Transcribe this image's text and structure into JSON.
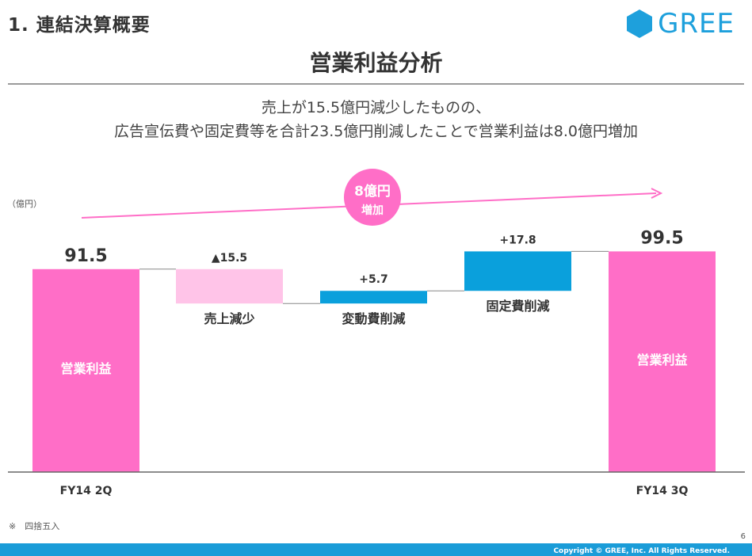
{
  "header": {
    "section_title": "1. 連結決算概要",
    "logo_text": "GREE"
  },
  "main_title": "営業利益分析",
  "subtitle": {
    "line1": "売上が15.5億円減少したものの、",
    "line2": "広告宣伝費や固定費等を合計23.5億円削減したことで営業利益は8.0億円増加"
  },
  "unit_label": "（億円）",
  "badge": {
    "line1": "8億円",
    "line2": "増加"
  },
  "chart_data": {
    "type": "bar",
    "subtype": "waterfall",
    "unit": "億円",
    "steps": [
      {
        "kind": "total",
        "category": "FY14 2Q",
        "inner_label": "営業利益",
        "label": "",
        "value": 91.5,
        "value_label": "91.5"
      },
      {
        "kind": "decrease",
        "category": "",
        "inner_label": "",
        "label": "売上減少",
        "value": -15.5,
        "value_label": "▲15.5"
      },
      {
        "kind": "increase",
        "category": "",
        "inner_label": "",
        "label": "変動費削減",
        "value": 5.7,
        "value_label": "+5.7"
      },
      {
        "kind": "increase",
        "category": "",
        "inner_label": "",
        "label": "固定費削減",
        "value": 17.8,
        "value_label": "+17.8"
      },
      {
        "kind": "total",
        "category": "FY14 3Q",
        "inner_label": "営業利益",
        "label": "",
        "value": 99.5,
        "value_label": "99.5"
      }
    ],
    "ylim": [
      0,
      110
    ],
    "grid": false,
    "colors": {
      "total": "#ff6ec7",
      "decrease": "#ffc4e8",
      "increase": "#0aa0dc",
      "connector": "#888888",
      "baseline": "#666666",
      "arrow": "#ff6ec7"
    }
  },
  "footnote": "※　四捨五入",
  "page_number": "6",
  "copyright": "Copyright © GREE, Inc. All Rights Reserved."
}
